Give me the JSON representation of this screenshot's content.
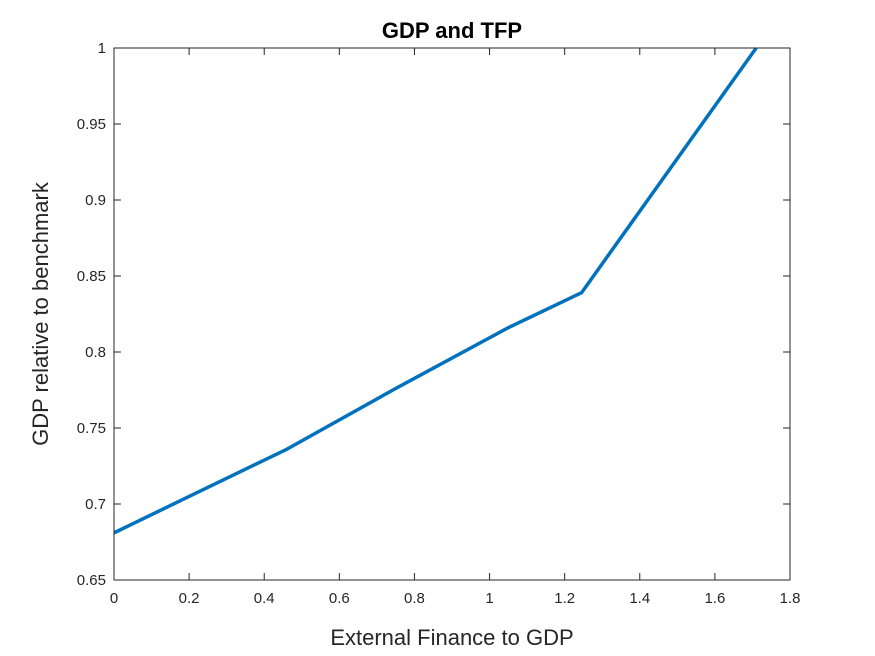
{
  "chart_data": {
    "type": "line",
    "title": "GDP and TFP",
    "xlabel": "External Finance to GDP",
    "ylabel": "GDP relative to benchmark",
    "xlim": [
      0,
      1.8
    ],
    "ylim": [
      0.65,
      1
    ],
    "xticks": [
      0,
      0.2,
      0.4,
      0.6,
      0.8,
      1,
      1.2,
      1.4,
      1.6,
      1.8
    ],
    "yticks": [
      0.65,
      0.7,
      0.75,
      0.8,
      0.85,
      0.9,
      0.95,
      1
    ],
    "xtick_labels": [
      "0",
      "0.2",
      "0.4",
      "0.6",
      "0.8",
      "1",
      "1.2",
      "1.4",
      "1.6",
      "1.8"
    ],
    "ytick_labels": [
      "0.65",
      "0.7",
      "0.75",
      "0.8",
      "0.85",
      "0.9",
      "0.95",
      "1"
    ],
    "grid": false,
    "series": [
      {
        "color": "#0072BD",
        "x": [
          0,
          0.2,
          0.46,
          0.75,
          1.05,
          1.245,
          1.71
        ],
        "y": [
          0.681,
          0.705,
          0.736,
          0.776,
          0.816,
          0.839,
          1.0
        ]
      }
    ]
  }
}
